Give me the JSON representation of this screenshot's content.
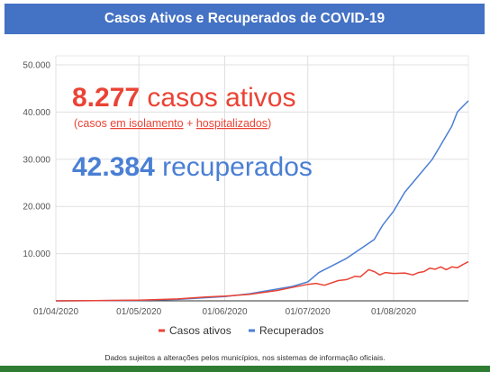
{
  "header": {
    "title": "Casos Ativos e Recuperados de COVID-19",
    "bg": "#4472c4"
  },
  "annotations": {
    "active_number": "8.277",
    "active_text": " casos ativos",
    "active_sub_open": "(casos ",
    "active_sub_link1": "em isolamento",
    "active_sub_plus": " + ",
    "active_sub_link2": "hospitalizados",
    "active_sub_close": ")",
    "recovered_number": "42.384",
    "recovered_text": " recuperados"
  },
  "footnote": "Dados sujeitos a alterações pelos municípios, nos sistemas de informação oficiais.",
  "colors": {
    "active": "#ea4335",
    "recovered": "#4a7fd4",
    "bottom_bar": "#2e7d32",
    "grid": "#e0e0e0"
  },
  "chart_data": {
    "type": "line",
    "title": "",
    "x_ticks": [
      "01/04/2020",
      "01/05/2020",
      "01/06/2020",
      "01/07/2020",
      "01/08/2020"
    ],
    "y_ticks": [
      "50.000",
      "40.000",
      "30.000",
      "20.000",
      "10.000"
    ],
    "ylim": [
      0,
      50000
    ],
    "xlim": [
      "2020-04-01",
      "2020-08-28"
    ],
    "grid": true,
    "legend_position": "bottom",
    "series": [
      {
        "name": "Casos ativos",
        "color": "#ea4335",
        "points": [
          [
            "2020-04-01",
            0
          ],
          [
            "2020-04-15",
            50
          ],
          [
            "2020-05-01",
            150
          ],
          [
            "2020-05-15",
            400
          ],
          [
            "2020-05-25",
            800
          ],
          [
            "2020-06-01",
            1000
          ],
          [
            "2020-06-10",
            1400
          ],
          [
            "2020-06-20",
            2200
          ],
          [
            "2020-06-25",
            2800
          ],
          [
            "2020-07-01",
            3500
          ],
          [
            "2020-07-04",
            3700
          ],
          [
            "2020-07-07",
            3300
          ],
          [
            "2020-07-12",
            4300
          ],
          [
            "2020-07-15",
            4500
          ],
          [
            "2020-07-18",
            5200
          ],
          [
            "2020-07-20",
            5100
          ],
          [
            "2020-07-23",
            6600
          ],
          [
            "2020-07-25",
            6200
          ],
          [
            "2020-07-27",
            5500
          ],
          [
            "2020-07-29",
            6000
          ],
          [
            "2020-08-01",
            5800
          ],
          [
            "2020-08-05",
            5900
          ],
          [
            "2020-08-08",
            5500
          ],
          [
            "2020-08-10",
            6000
          ],
          [
            "2020-08-12",
            6200
          ],
          [
            "2020-08-14",
            6900
          ],
          [
            "2020-08-16",
            6700
          ],
          [
            "2020-08-18",
            7200
          ],
          [
            "2020-08-20",
            6600
          ],
          [
            "2020-08-22",
            7200
          ],
          [
            "2020-08-24",
            7000
          ],
          [
            "2020-08-26",
            7700
          ],
          [
            "2020-08-28",
            8277
          ]
        ]
      },
      {
        "name": "Recuperados",
        "color": "#4a7fd4",
        "points": [
          [
            "2020-04-01",
            0
          ],
          [
            "2020-05-01",
            100
          ],
          [
            "2020-05-15",
            300
          ],
          [
            "2020-06-01",
            900
          ],
          [
            "2020-06-10",
            1500
          ],
          [
            "2020-06-20",
            2500
          ],
          [
            "2020-06-25",
            3000
          ],
          [
            "2020-07-01",
            4000
          ],
          [
            "2020-07-05",
            6000
          ],
          [
            "2020-07-10",
            7500
          ],
          [
            "2020-07-15",
            9000
          ],
          [
            "2020-07-20",
            11000
          ],
          [
            "2020-07-25",
            13000
          ],
          [
            "2020-07-28",
            16000
          ],
          [
            "2020-08-01",
            19000
          ],
          [
            "2020-08-05",
            23000
          ],
          [
            "2020-08-10",
            26500
          ],
          [
            "2020-08-15",
            30000
          ],
          [
            "2020-08-18",
            33000
          ],
          [
            "2020-08-20",
            35000
          ],
          [
            "2020-08-22",
            37000
          ],
          [
            "2020-08-24",
            40000
          ],
          [
            "2020-08-28",
            42384
          ]
        ]
      }
    ]
  }
}
